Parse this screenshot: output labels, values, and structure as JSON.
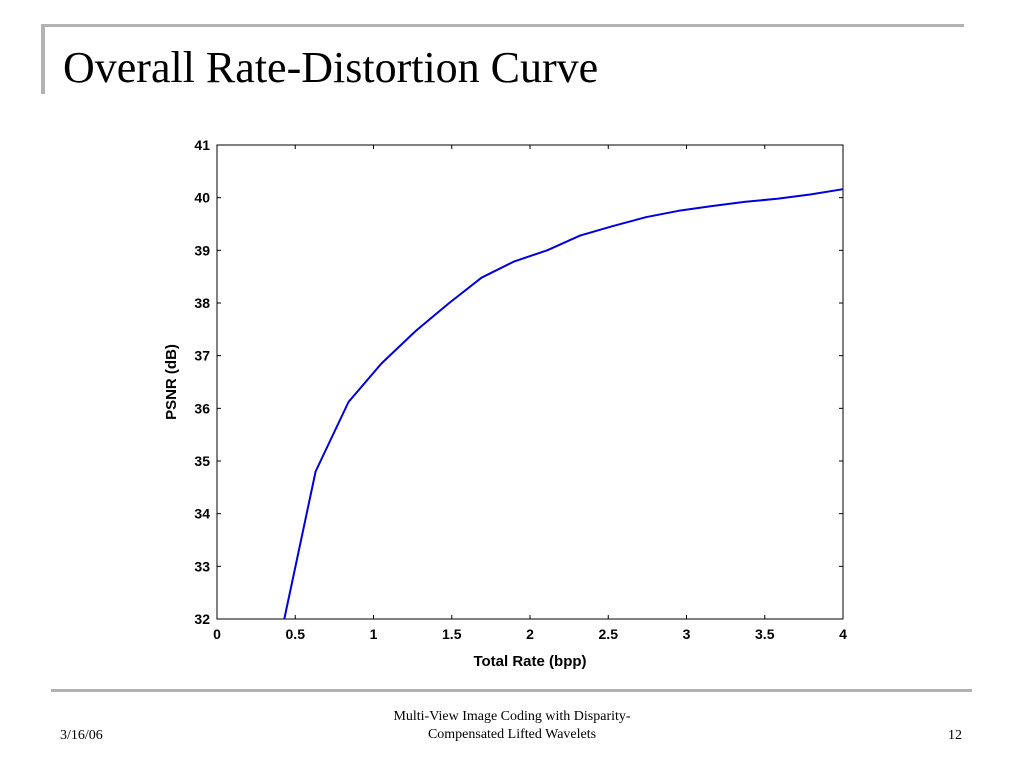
{
  "slide": {
    "title": "Overall Rate-Distortion Curve",
    "footer": {
      "date": "3/16/06",
      "caption_line1": "Multi-View Image Coding with Disparity-",
      "caption_line2": "Compensated Lifted Wavelets",
      "page_number": "12"
    }
  },
  "chart_data": {
    "type": "line",
    "title": "",
    "xlabel": "Total Rate (bpp)",
    "ylabel": "PSNR (dB)",
    "xlim": [
      0,
      4
    ],
    "ylim": [
      32,
      41
    ],
    "xticks": [
      "0",
      "0.5",
      "1",
      "1.5",
      "2",
      "2.5",
      "3",
      "3.5",
      "4"
    ],
    "yticks": [
      "32",
      "33",
      "34",
      "35",
      "36",
      "37",
      "38",
      "39",
      "40",
      "41"
    ],
    "grid": false,
    "series": [
      {
        "color": "#0000dd",
        "x": [
          0.43,
          0.63,
          0.84,
          1.05,
          1.27,
          1.48,
          1.69,
          1.9,
          2.11,
          2.32,
          2.53,
          2.74,
          2.95,
          3.16,
          3.37,
          3.58,
          3.79,
          4.0
        ],
        "y": [
          32.0,
          34.8,
          36.12,
          36.85,
          37.47,
          37.99,
          38.48,
          38.79,
          39.0,
          39.28,
          39.46,
          39.63,
          39.75,
          39.84,
          39.92,
          39.98,
          40.06,
          40.16
        ]
      }
    ]
  }
}
